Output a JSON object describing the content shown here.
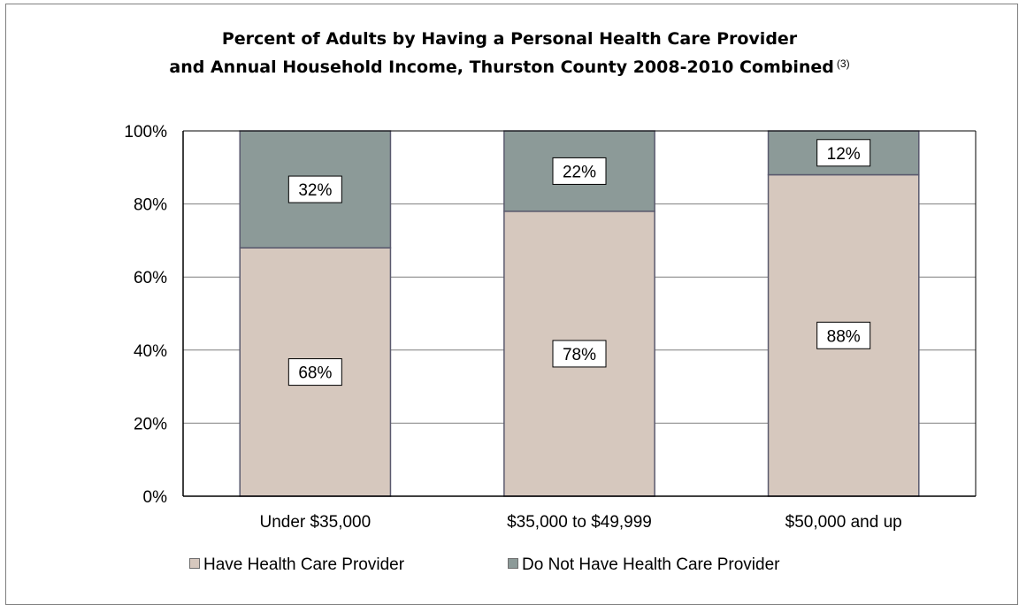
{
  "title": {
    "line1": "Percent of Adults by Having a Personal Health Care Provider",
    "line2": "and Annual Household Income, Thurston County 2008-2010 Combined",
    "footnote": "(3)"
  },
  "colors": {
    "have": "#d6c8be",
    "not_have": "#8c9a98",
    "bar_border": "#5a5a6e",
    "grid": "#7f7f7f"
  },
  "chart_data": {
    "type": "bar",
    "stacked": true,
    "categories": [
      "Under $35,000",
      "$35,000 to $49,999",
      "$50,000 and up"
    ],
    "series": [
      {
        "name": "Have Health Care Provider",
        "values": [
          68,
          78,
          88
        ],
        "labels": [
          "68%",
          "78%",
          "88%"
        ]
      },
      {
        "name": "Do Not Have Health Care Provider",
        "values": [
          32,
          22,
          12
        ],
        "labels": [
          "32%",
          "22%",
          "12%"
        ]
      }
    ],
    "ylim": [
      0,
      100
    ],
    "yticks": [
      "0%",
      "20%",
      "40%",
      "60%",
      "80%",
      "100%"
    ],
    "grid": true,
    "legend_position": "bottom"
  }
}
